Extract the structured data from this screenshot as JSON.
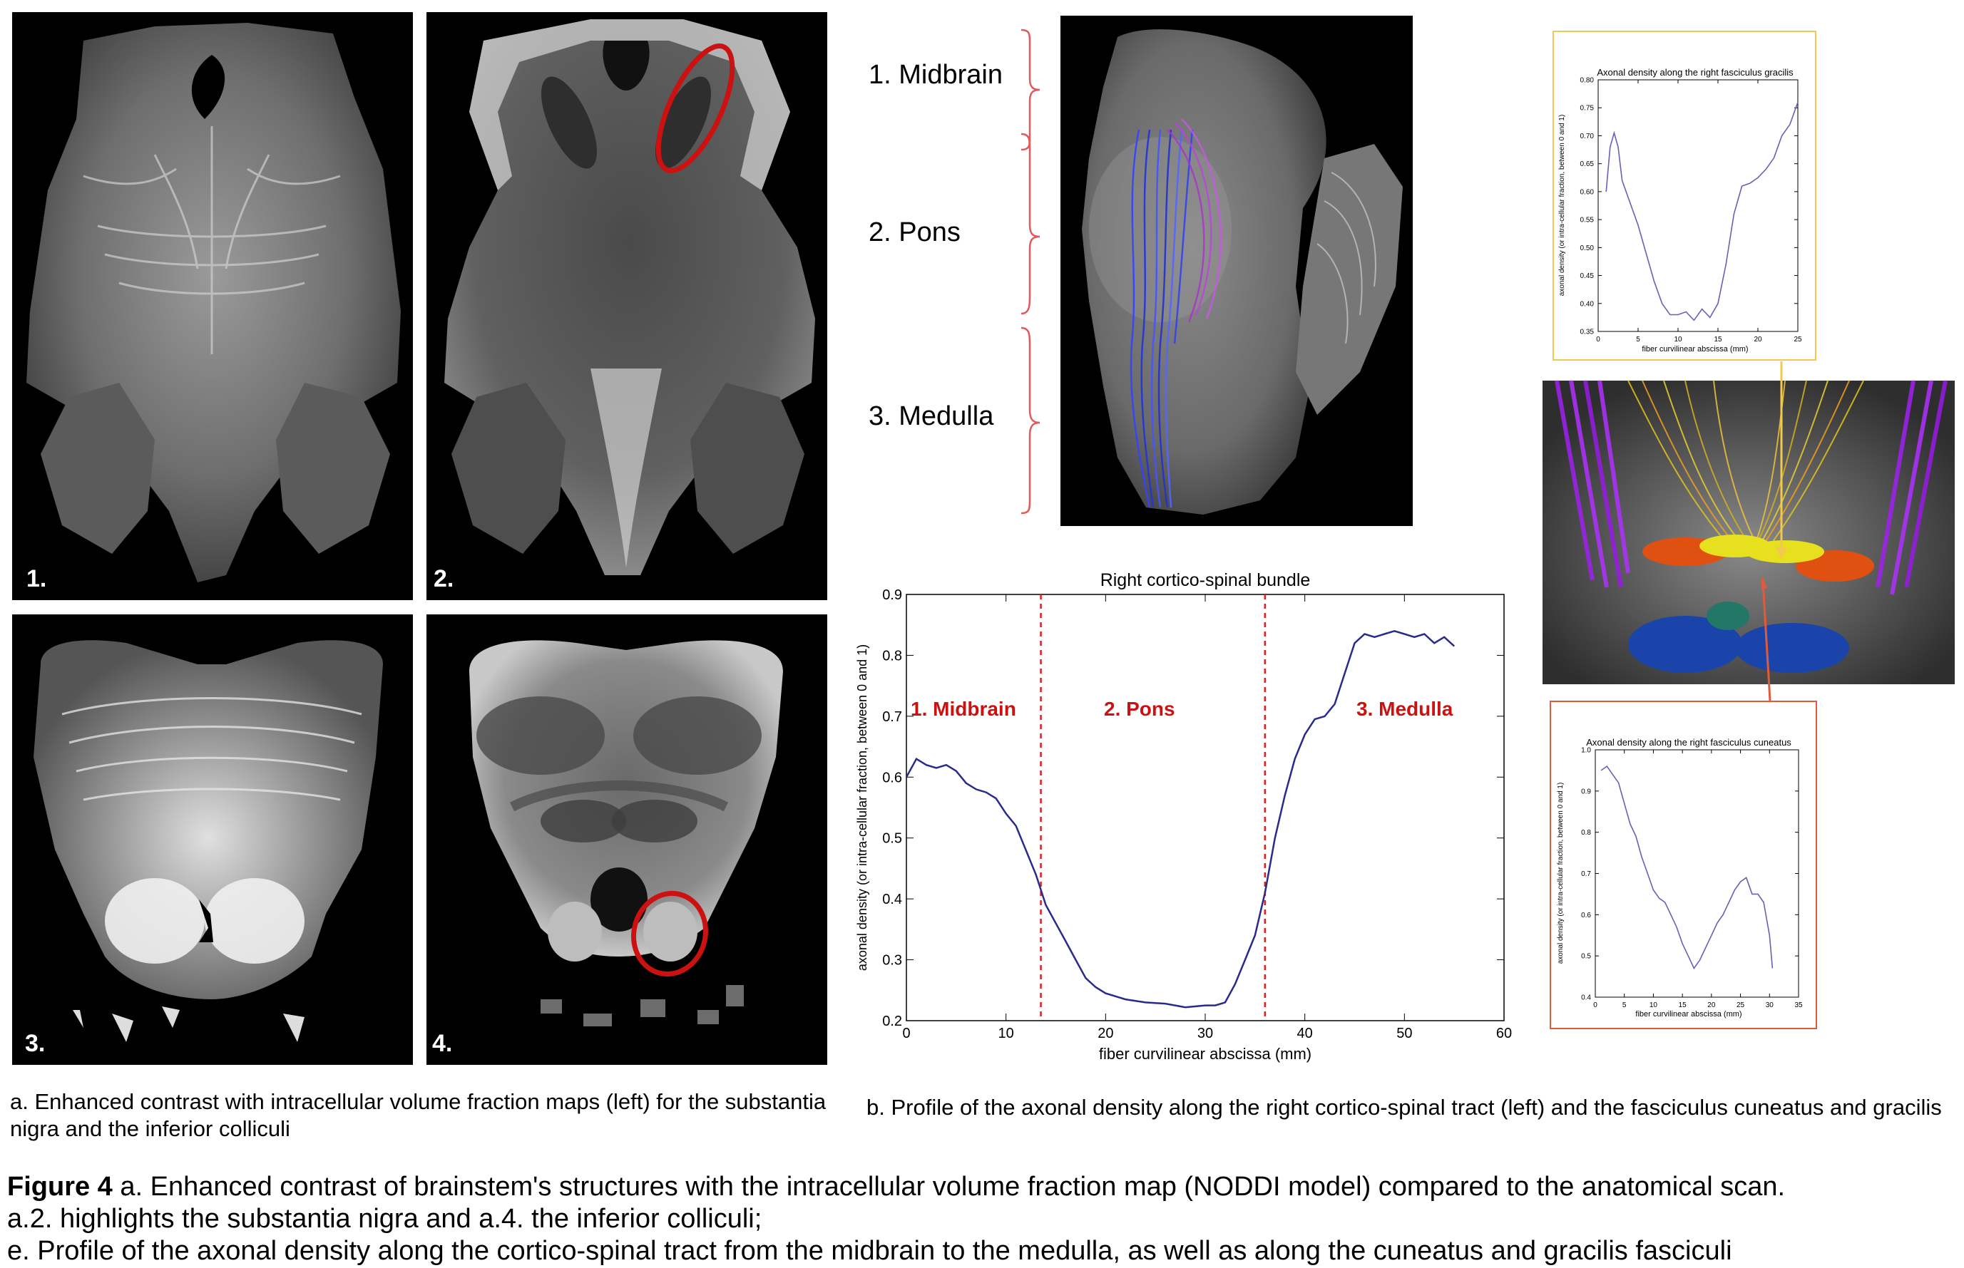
{
  "panels_a": [
    {
      "label": "1."
    },
    {
      "label": "2."
    },
    {
      "label": "3."
    },
    {
      "label": "4."
    }
  ],
  "regions": {
    "midbrain": "1. Midbrain",
    "pons": "2. Pons",
    "medulla": "3. Medulla"
  },
  "caption_a": "a. Enhanced contrast with intracellular volume fraction maps (left) for the substantia nigra and the inferior colliculi",
  "caption_b": "b. Profile of the axonal density along the right cortico-spinal tract (left) and the fasciculus cuneatus and gracilis",
  "figure_caption": {
    "label": "Figure 4",
    "line1": " a. Enhanced contrast of brainstem's structures with the intracellular volume fraction map (NODDI model) compared to the anatomical scan.",
    "line2": "a.2. highlights the substantia nigra and a.4. the inferior colliculi;",
    "line3": "e. Profile of the axonal density along the cortico-spinal tract from the midbrain to the medulla, as well as along the cuneatus and gracilis fasciculi"
  },
  "colors": {
    "highlight_red": "#cc1111",
    "curve_blue": "#2a2a8c",
    "curve_purple": "#6b5fb5",
    "gracilis_frame": "#f2c94c",
    "cuneatus_frame": "#e05a3c",
    "region_text": "#cc1111"
  },
  "chart_data": [
    {
      "type": "line",
      "title": "Right cortico-spinal bundle",
      "xlabel": "fiber curvilinear abscissa (mm)",
      "ylabel": "axonal density (or intra-cellular fraction, between 0 and 1)",
      "xlim": [
        0,
        60
      ],
      "ylim": [
        0.2,
        0.9
      ],
      "xticks": [
        "0",
        "10",
        "20",
        "30",
        "40",
        "50",
        "60"
      ],
      "yticks": [
        "0.2",
        "0.3",
        "0.4",
        "0.5",
        "0.6",
        "0.7",
        "0.8",
        "0.9"
      ],
      "vlines": [
        13.5,
        36
      ],
      "annotations": [
        "1. Midbrain",
        "2. Pons",
        "3. Medulla"
      ],
      "x": [
        0,
        1,
        2,
        3,
        4,
        5,
        6,
        7,
        8,
        9,
        10,
        11,
        12,
        13,
        14,
        15,
        16,
        17,
        18,
        19,
        20,
        22,
        24,
        26,
        28,
        30,
        31,
        32,
        33,
        34,
        35,
        36,
        37,
        38,
        39,
        40,
        41,
        42,
        43,
        44,
        45,
        46,
        47,
        48,
        49,
        50,
        51,
        52,
        53,
        54,
        55
      ],
      "y": [
        0.6,
        0.63,
        0.62,
        0.615,
        0.62,
        0.61,
        0.59,
        0.58,
        0.575,
        0.565,
        0.54,
        0.52,
        0.48,
        0.44,
        0.39,
        0.36,
        0.33,
        0.3,
        0.27,
        0.255,
        0.245,
        0.235,
        0.23,
        0.228,
        0.222,
        0.225,
        0.225,
        0.23,
        0.26,
        0.3,
        0.34,
        0.41,
        0.5,
        0.57,
        0.63,
        0.67,
        0.695,
        0.7,
        0.72,
        0.77,
        0.82,
        0.835,
        0.83,
        0.835,
        0.84,
        0.835,
        0.83,
        0.835,
        0.82,
        0.83,
        0.815
      ]
    },
    {
      "type": "line",
      "title": "Axonal density along the right fasciculus gracilis",
      "xlabel": "fiber curvilinear abscissa (mm)",
      "ylabel": "axonal density (or intra-cellular fraction, between 0 and 1)",
      "xlim": [
        0,
        25
      ],
      "ylim": [
        0.35,
        0.8
      ],
      "xticks": [
        "0",
        "5",
        "10",
        "15",
        "20",
        "25"
      ],
      "yticks": [
        "0.35",
        "0.40",
        "0.45",
        "0.50",
        "0.55",
        "0.60",
        "0.65",
        "0.70",
        "0.75",
        "0.80"
      ],
      "x": [
        1,
        1.5,
        2,
        2.5,
        3,
        4,
        5,
        6,
        7,
        8,
        9,
        10,
        11,
        12,
        13,
        14,
        15,
        16,
        17,
        18,
        19,
        20,
        21,
        22,
        23,
        24,
        25
      ],
      "y": [
        0.6,
        0.68,
        0.705,
        0.68,
        0.62,
        0.58,
        0.54,
        0.49,
        0.44,
        0.4,
        0.38,
        0.38,
        0.385,
        0.37,
        0.39,
        0.375,
        0.4,
        0.47,
        0.56,
        0.61,
        0.615,
        0.625,
        0.64,
        0.66,
        0.7,
        0.72,
        0.76
      ]
    },
    {
      "type": "line",
      "title": "Axonal density along the right fasciculus cuneatus",
      "xlabel": "fiber curvilinear abscissa (mm)",
      "ylabel": "axonal density (or intra-cellular fraction, between 0 and 1)",
      "xlim": [
        0,
        35
      ],
      "ylim": [
        0.4,
        1.0
      ],
      "xticks": [
        "0",
        "5",
        "10",
        "15",
        "20",
        "25",
        "30",
        "35"
      ],
      "yticks": [
        "0.4",
        "0.5",
        "0.6",
        "0.7",
        "0.8",
        "0.9",
        "1.0"
      ],
      "x": [
        1,
        2,
        3,
        4,
        5,
        6,
        7,
        8,
        9,
        10,
        11,
        12,
        13,
        14,
        15,
        16,
        17,
        18,
        19,
        20,
        21,
        22,
        23,
        24,
        25,
        26,
        27,
        28,
        29,
        30,
        30.5
      ],
      "y": [
        0.95,
        0.96,
        0.94,
        0.92,
        0.87,
        0.82,
        0.79,
        0.74,
        0.7,
        0.66,
        0.64,
        0.63,
        0.6,
        0.57,
        0.53,
        0.5,
        0.47,
        0.49,
        0.52,
        0.55,
        0.58,
        0.6,
        0.63,
        0.66,
        0.68,
        0.69,
        0.65,
        0.65,
        0.63,
        0.55,
        0.47
      ]
    }
  ]
}
